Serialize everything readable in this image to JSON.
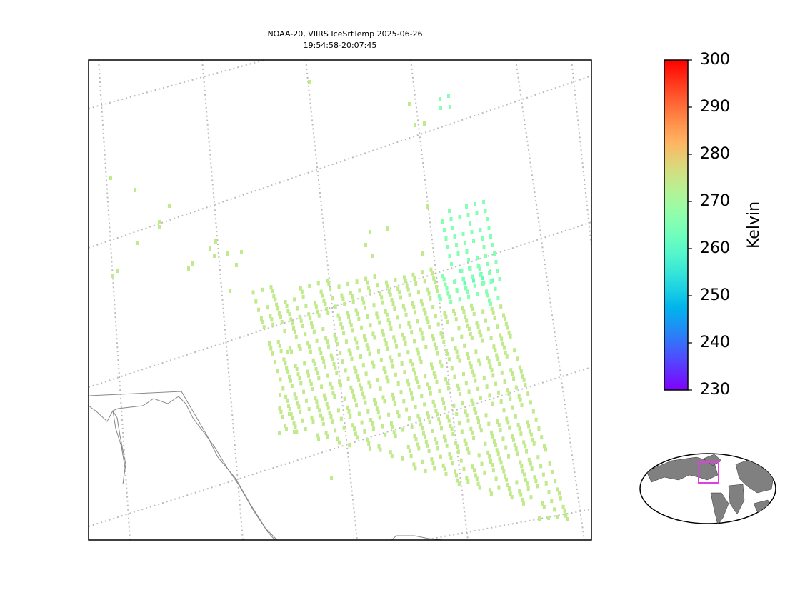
{
  "chart_data": {
    "type": "map",
    "title": [
      "NOAA-20, VIIRS IceSrfTemp 2025-06-26",
      "19:54:58-20:07:45"
    ],
    "colormap": "rainbow",
    "colorbar": {
      "label": "Kelvin",
      "lim": [
        230,
        300
      ],
      "ticks": [
        230,
        240,
        250,
        260,
        270,
        280,
        290,
        300
      ]
    },
    "groups": [
      {
        "value": 274
      },
      {
        "value": 266
      },
      {
        "value": 261
      }
    ]
  }
}
